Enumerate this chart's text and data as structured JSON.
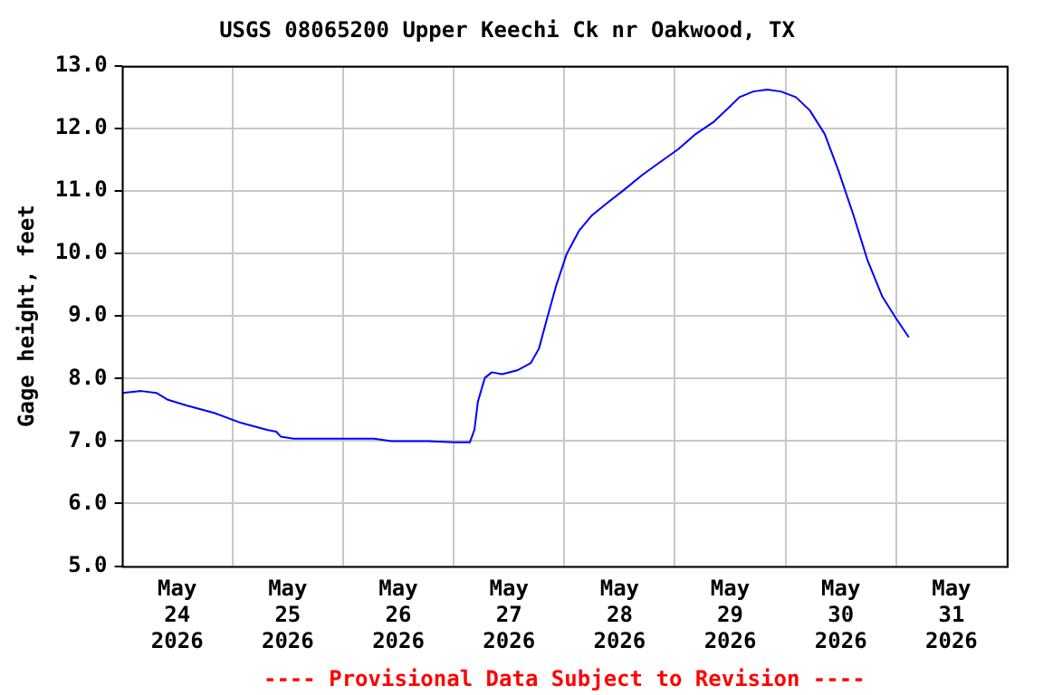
{
  "chart_data": {
    "type": "line",
    "title": "USGS 08065200 Upper Keechi Ck nr Oakwood, TX",
    "ylabel": "Gage height, feet",
    "annotations": [
      "---- Provisional Data Subject to Revision ----"
    ],
    "x": [
      "2026-05-24T00:00",
      "2026-05-24T04:15",
      "2026-05-24T07:30",
      "2026-05-24T10:00",
      "2026-05-24T14:00",
      "2026-05-24T20:00",
      "2026-05-25T01:30",
      "2026-05-25T07:30",
      "2026-05-25T09:30",
      "2026-05-25T10:30",
      "2026-05-25T13:15",
      "2026-05-26T06:45",
      "2026-05-26T10:30",
      "2026-05-26T18:15",
      "2026-05-27T00:15",
      "2026-05-27T03:30",
      "2026-05-27T04:30",
      "2026-05-27T05:15",
      "2026-05-27T06:45",
      "2026-05-27T08:15",
      "2026-05-27T10:30",
      "2026-05-27T13:45",
      "2026-05-27T16:45",
      "2026-05-27T18:30",
      "2026-05-27T20:15",
      "2026-05-27T22:15",
      "2026-05-28T00:30",
      "2026-05-28T03:15",
      "2026-05-28T06:00",
      "2026-05-28T09:00",
      "2026-05-28T13:00",
      "2026-05-28T17:00",
      "2026-05-28T20:45",
      "2026-05-29T00:45",
      "2026-05-29T04:30",
      "2026-05-29T08:30",
      "2026-05-29T11:30",
      "2026-05-29T14:00",
      "2026-05-29T17:00",
      "2026-05-29T20:00",
      "2026-05-29T23:00",
      "2026-05-30T02:15",
      "2026-05-30T05:15",
      "2026-05-30T08:30",
      "2026-05-30T11:30",
      "2026-05-30T14:45",
      "2026-05-30T17:45",
      "2026-05-30T21:00",
      "2026-05-31T00:00",
      "2026-05-31T02:45"
    ],
    "series": [
      {
        "color": "#0000ff",
        "values": [
          7.77,
          7.8,
          7.77,
          7.66,
          7.57,
          7.45,
          7.3,
          7.18,
          7.15,
          7.07,
          7.04,
          7.04,
          7.0,
          7.0,
          6.98,
          6.98,
          7.18,
          7.63,
          8.01,
          8.1,
          8.07,
          8.13,
          8.25,
          8.48,
          8.96,
          9.49,
          9.99,
          10.37,
          10.61,
          10.79,
          11.02,
          11.26,
          11.46,
          11.67,
          11.91,
          12.11,
          12.32,
          12.5,
          12.59,
          12.62,
          12.59,
          12.5,
          12.29,
          11.91,
          11.32,
          10.61,
          9.9,
          9.31,
          8.96,
          8.66
        ]
      }
    ],
    "xlim": [
      "2026-05-24T00:00",
      "2026-06-01T00:00"
    ],
    "xticks": [
      {
        "value": "2026-05-24T00:00",
        "label": null
      },
      {
        "value": "2026-05-24T12:00",
        "label": "May 24 2026"
      },
      {
        "value": "2026-05-25T00:00",
        "label": null
      },
      {
        "value": "2026-05-25T12:00",
        "label": "May 25 2026"
      },
      {
        "value": "2026-05-26T00:00",
        "label": null
      },
      {
        "value": "2026-05-26T12:00",
        "label": "May 26 2026"
      },
      {
        "value": "2026-05-27T00:00",
        "label": null
      },
      {
        "value": "2026-05-27T12:00",
        "label": "May 27 2026"
      },
      {
        "value": "2026-05-28T00:00",
        "label": null
      },
      {
        "value": "2026-05-28T12:00",
        "label": "May 28 2026"
      },
      {
        "value": "2026-05-29T00:00",
        "label": null
      },
      {
        "value": "2026-05-29T12:00",
        "label": "May 29 2026"
      },
      {
        "value": "2026-05-30T00:00",
        "label": null
      },
      {
        "value": "2026-05-30T12:00",
        "label": "May 30 2026"
      },
      {
        "value": "2026-05-31T00:00",
        "label": null
      },
      {
        "value": "2026-05-31T12:00",
        "label": "May 31 2026"
      },
      {
        "value": "2026-06-01T00:00",
        "label": null
      }
    ],
    "ylim": [
      5,
      13
    ],
    "yticks": [
      {
        "value": 5,
        "label": "5.0"
      },
      {
        "value": 6,
        "label": "6.0"
      },
      {
        "value": 7,
        "label": "7.0"
      },
      {
        "value": 8,
        "label": "8.0"
      },
      {
        "value": 9,
        "label": "9.0"
      },
      {
        "value": 10,
        "label": "10.0"
      },
      {
        "value": 11,
        "label": "11.0"
      },
      {
        "value": 12,
        "label": "12.0"
      },
      {
        "value": 13,
        "label": "13.0"
      }
    ],
    "grid": true,
    "legend": false,
    "marker": "none",
    "line_style": "solid"
  }
}
